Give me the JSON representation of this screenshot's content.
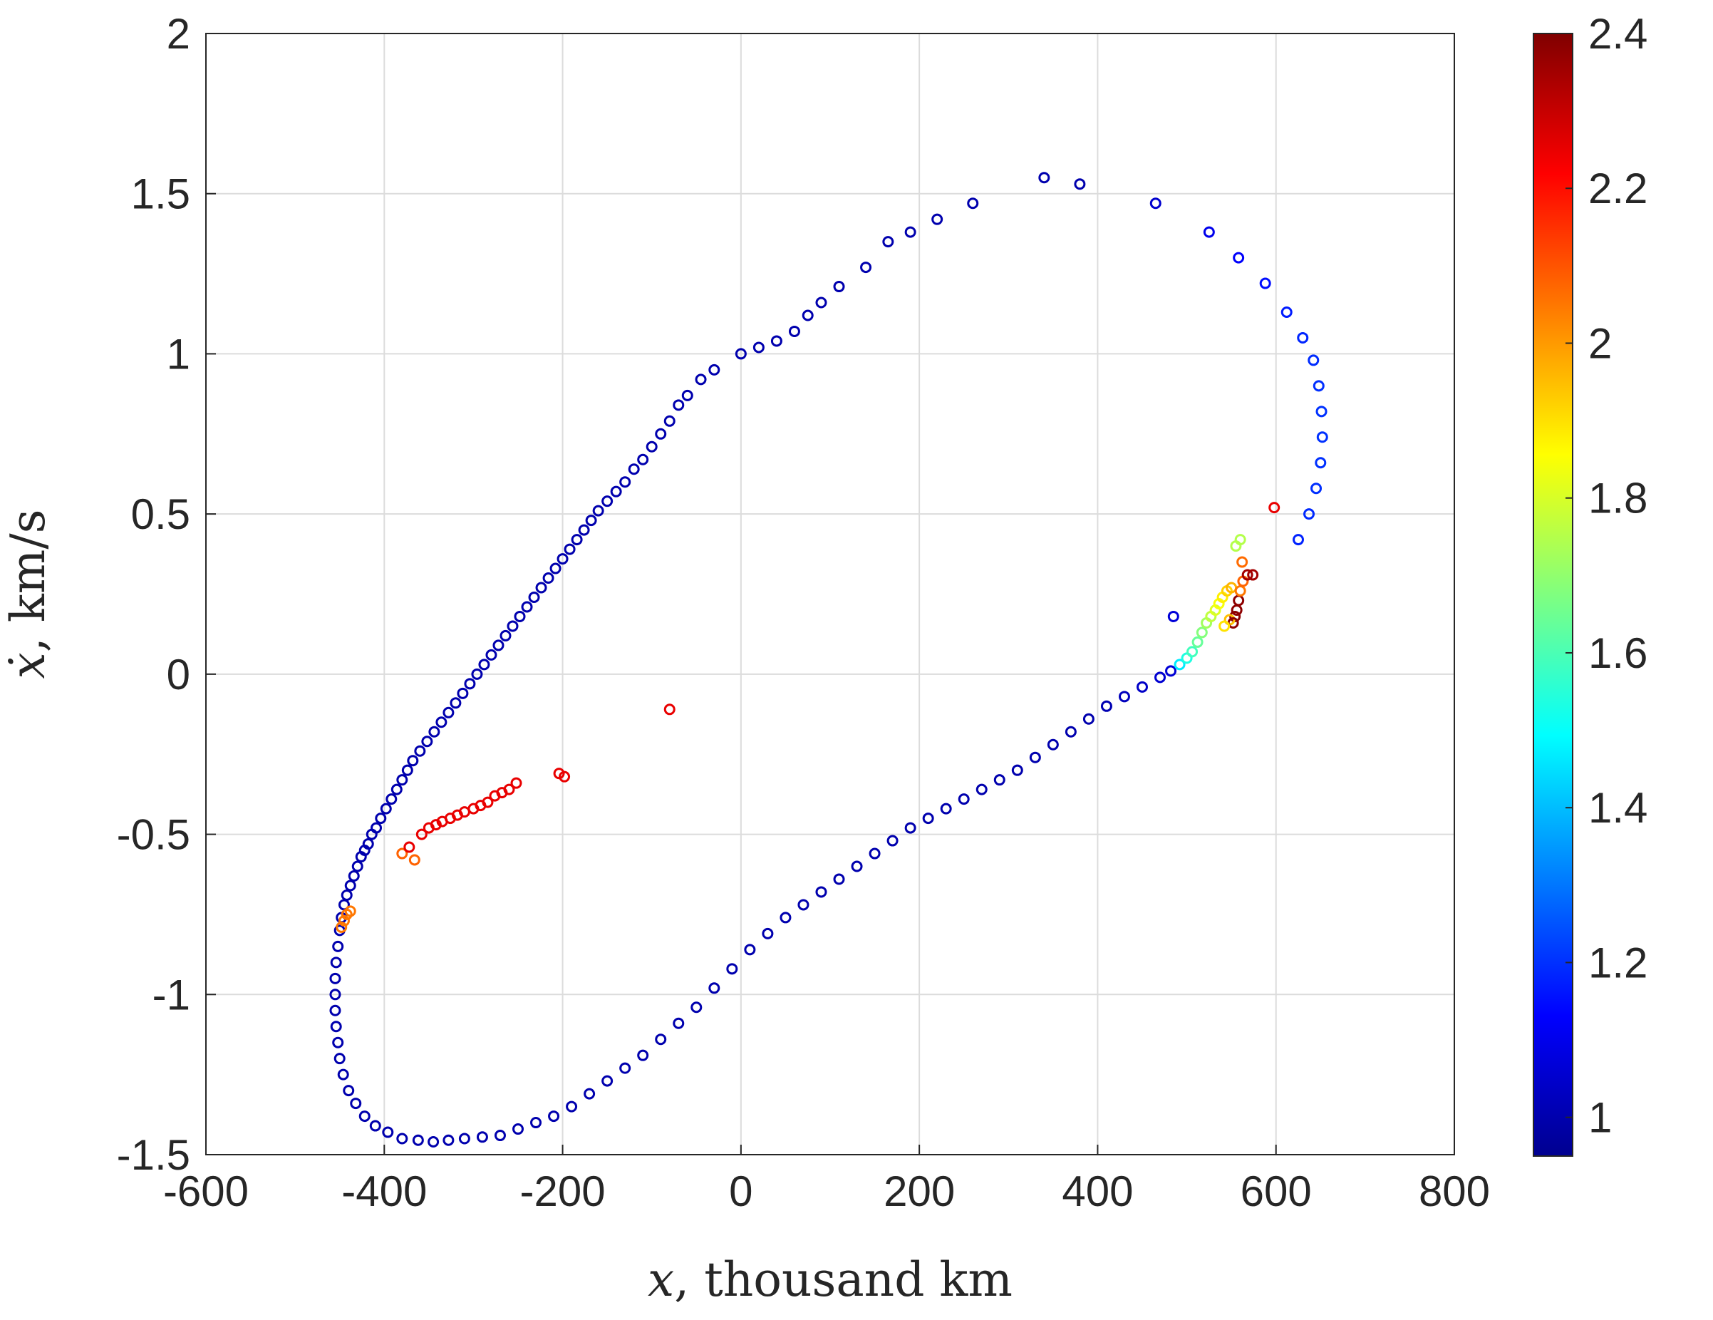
{
  "chart_data": {
    "type": "scatter",
    "title": "",
    "xlabel": {
      "var": "x",
      "unit": ", thousand km"
    },
    "ylabel": {
      "var": "ẋ",
      "unit": ", km/s"
    },
    "xlim": [
      -600,
      800
    ],
    "ylim": [
      -1.5,
      2
    ],
    "xticks": [
      "-600",
      "-400",
      "-200",
      "0",
      "200",
      "400",
      "600",
      "800"
    ],
    "yticks": [
      "-1.5",
      "-1",
      "-0.5",
      "0",
      "0.5",
      "1",
      "1.5",
      "2"
    ],
    "grid": true,
    "marker": "open-circle",
    "colormap": "jet",
    "colorbar": {
      "range": [
        0.95,
        2.4
      ],
      "ticks": [
        "1",
        "1.2",
        "1.4",
        "1.6",
        "1.8",
        "2",
        "2.2",
        "2.4"
      ],
      "position": "right"
    },
    "series": [
      {
        "points": [
          [
            -455,
            -1.0
          ],
          [
            -455,
            -0.95
          ],
          [
            -454,
            -0.9
          ],
          [
            -452,
            -0.85
          ],
          [
            -450,
            -0.8
          ],
          [
            -448,
            -0.76
          ],
          [
            -445,
            -0.72
          ],
          [
            -442,
            -0.69
          ],
          [
            -438,
            -0.66
          ],
          [
            -434,
            -0.63
          ],
          [
            -430,
            -0.6
          ],
          [
            -426,
            -0.57
          ],
          [
            -422,
            -0.55
          ],
          [
            -418,
            -0.53
          ],
          [
            -414,
            -0.5
          ],
          [
            -409,
            -0.48
          ],
          [
            -404,
            -0.45
          ],
          [
            -398,
            -0.42
          ],
          [
            -392,
            -0.39
          ],
          [
            -386,
            -0.36
          ],
          [
            -380,
            -0.33
          ],
          [
            -374,
            -0.3
          ],
          [
            -368,
            -0.27
          ],
          [
            -360,
            -0.24
          ],
          [
            -352,
            -0.21
          ],
          [
            -344,
            -0.18
          ],
          [
            -336,
            -0.15
          ],
          [
            -328,
            -0.12
          ],
          [
            -320,
            -0.09
          ],
          [
            -312,
            -0.06
          ],
          [
            -304,
            -0.03
          ],
          [
            -296,
            0.0
          ],
          [
            -288,
            0.03
          ],
          [
            -280,
            0.06
          ],
          [
            -272,
            0.09
          ],
          [
            -264,
            0.12
          ],
          [
            -256,
            0.15
          ],
          [
            -248,
            0.18
          ],
          [
            -240,
            0.21
          ],
          [
            -232,
            0.24
          ],
          [
            -224,
            0.27
          ],
          [
            -216,
            0.3
          ],
          [
            -208,
            0.33
          ],
          [
            -200,
            0.36
          ],
          [
            -192,
            0.39
          ],
          [
            -184,
            0.42
          ],
          [
            -176,
            0.45
          ],
          [
            -168,
            0.48
          ],
          [
            -160,
            0.51
          ],
          [
            -150,
            0.54
          ],
          [
            -140,
            0.57
          ],
          [
            -130,
            0.6
          ],
          [
            -120,
            0.64
          ],
          [
            -110,
            0.67
          ],
          [
            -100,
            0.71
          ],
          [
            -90,
            0.75
          ],
          [
            -80,
            0.79
          ],
          [
            -70,
            0.84
          ],
          [
            -60,
            0.87
          ],
          [
            -45,
            0.92
          ],
          [
            -30,
            0.95
          ],
          [
            0,
            1.0
          ],
          [
            20,
            1.02
          ],
          [
            40,
            1.04
          ],
          [
            60,
            1.07
          ],
          [
            75,
            1.12
          ],
          [
            90,
            1.16
          ],
          [
            110,
            1.21
          ],
          [
            140,
            1.27
          ],
          [
            165,
            1.35
          ],
          [
            190,
            1.38
          ],
          [
            220,
            1.42
          ],
          [
            260,
            1.47
          ],
          [
            340,
            1.55
          ],
          [
            380,
            1.53
          ],
          [
            465,
            1.47
          ],
          [
            525,
            1.38
          ],
          [
            558,
            1.3
          ],
          [
            588,
            1.22
          ],
          [
            612,
            1.13
          ],
          [
            630,
            1.05
          ],
          [
            642,
            0.98
          ],
          [
            648,
            0.9
          ],
          [
            651,
            0.82
          ],
          [
            652,
            0.74
          ],
          [
            650,
            0.66
          ],
          [
            645,
            0.58
          ],
          [
            637,
            0.5
          ],
          [
            625,
            0.42
          ]
        ]
      },
      {
        "points": [
          [
            -455,
            -1.05
          ],
          [
            -454,
            -1.1
          ],
          [
            -452,
            -1.15
          ],
          [
            -450,
            -1.2
          ],
          [
            -446,
            -1.25
          ],
          [
            -440,
            -1.3
          ],
          [
            -432,
            -1.34
          ],
          [
            -422,
            -1.38
          ],
          [
            -410,
            -1.41
          ],
          [
            -396,
            -1.43
          ],
          [
            -380,
            -1.45
          ],
          [
            -362,
            -1.455
          ],
          [
            -345,
            -1.46
          ],
          [
            -328,
            -1.455
          ],
          [
            -310,
            -1.45
          ],
          [
            -290,
            -1.445
          ],
          [
            -270,
            -1.44
          ],
          [
            -250,
            -1.42
          ],
          [
            -230,
            -1.4
          ],
          [
            -210,
            -1.38
          ],
          [
            -190,
            -1.35
          ],
          [
            -170,
            -1.31
          ],
          [
            -150,
            -1.27
          ],
          [
            -130,
            -1.23
          ],
          [
            -110,
            -1.19
          ],
          [
            -90,
            -1.14
          ],
          [
            -70,
            -1.09
          ],
          [
            -50,
            -1.04
          ],
          [
            -30,
            -0.98
          ],
          [
            -10,
            -0.92
          ],
          [
            10,
            -0.86
          ],
          [
            30,
            -0.81
          ],
          [
            50,
            -0.76
          ],
          [
            70,
            -0.72
          ],
          [
            90,
            -0.68
          ],
          [
            110,
            -0.64
          ],
          [
            130,
            -0.6
          ],
          [
            150,
            -0.56
          ],
          [
            170,
            -0.52
          ],
          [
            190,
            -0.48
          ],
          [
            210,
            -0.45
          ],
          [
            230,
            -0.42
          ],
          [
            250,
            -0.39
          ],
          [
            270,
            -0.36
          ],
          [
            290,
            -0.33
          ],
          [
            310,
            -0.3
          ],
          [
            330,
            -0.26
          ],
          [
            350,
            -0.22
          ],
          [
            370,
            -0.18
          ],
          [
            390,
            -0.14
          ],
          [
            410,
            -0.1
          ],
          [
            430,
            -0.07
          ],
          [
            450,
            -0.04
          ],
          [
            470,
            -0.01
          ],
          [
            482,
            0.01
          ],
          [
            485,
            0.18
          ]
        ]
      },
      {
        "points": [
          [
            492,
            0.03
          ],
          [
            500,
            0.05
          ],
          [
            506,
            0.07
          ],
          [
            512,
            0.1
          ],
          [
            517,
            0.13
          ],
          [
            522,
            0.16
          ],
          [
            527,
            0.18
          ],
          [
            532,
            0.2
          ],
          [
            536,
            0.22
          ],
          [
            540,
            0.24
          ],
          [
            545,
            0.26
          ],
          [
            550,
            0.27
          ],
          [
            555,
            0.4
          ],
          [
            560,
            0.42
          ],
          [
            554,
            0.18
          ],
          [
            556,
            0.2
          ],
          [
            558,
            0.23
          ],
          [
            560,
            0.26
          ],
          [
            563,
            0.29
          ],
          [
            568,
            0.31
          ],
          [
            574,
            0.31
          ],
          [
            548,
            0.17
          ],
          [
            552,
            0.16
          ],
          [
            542,
            0.15
          ],
          [
            562,
            0.35
          ],
          [
            598,
            0.52
          ]
        ]
      },
      {
        "points": [
          [
            -448,
            -0.79
          ],
          [
            -445,
            -0.77
          ],
          [
            -442,
            -0.75
          ],
          [
            -438,
            -0.74
          ],
          [
            -380,
            -0.56
          ],
          [
            -372,
            -0.54
          ],
          [
            -366,
            -0.58
          ],
          [
            -358,
            -0.5
          ],
          [
            -350,
            -0.48
          ],
          [
            -342,
            -0.47
          ],
          [
            -335,
            -0.46
          ],
          [
            -326,
            -0.45
          ],
          [
            -318,
            -0.44
          ],
          [
            -310,
            -0.43
          ],
          [
            -300,
            -0.42
          ],
          [
            -292,
            -0.41
          ],
          [
            -284,
            -0.4
          ],
          [
            -276,
            -0.38
          ],
          [
            -268,
            -0.37
          ],
          [
            -260,
            -0.36
          ],
          [
            -252,
            -0.34
          ],
          [
            -204,
            -0.31
          ],
          [
            -198,
            -0.32
          ],
          [
            -80,
            -0.11
          ]
        ]
      }
    ]
  }
}
